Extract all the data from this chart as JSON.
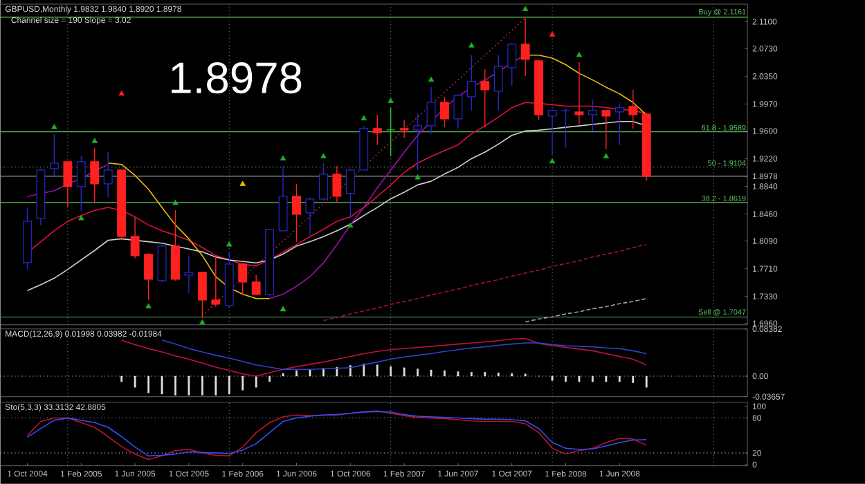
{
  "chart_data": [
    {
      "type": "candlestick",
      "title": "GBPUSD,Monthly  1.9832 1.9840 1.8920 1.8978",
      "subtitle": "Channel size = 190 Slope = 3.02",
      "annotations": [
        "1.8978",
        {
          "text": "61.8 - 1.9589",
          "y": 1.9589
        },
        {
          "text": "50 - 1.9104",
          "y": 1.9104
        },
        {
          "text": "38.2 - 1.8619",
          "y": 1.8619
        }
      ],
      "categories": [
        null,
        null,
        null,
        null,
        null,
        null,
        null,
        null,
        null,
        null,
        null,
        null,
        null,
        null,
        null,
        null,
        null,
        null,
        null,
        null,
        null,
        null,
        null,
        null,
        null,
        null,
        null,
        null,
        null,
        null,
        null,
        null,
        null,
        null,
        null,
        null,
        null,
        null,
        null,
        null,
        null,
        null,
        null,
        null,
        null,
        null,
        null,
        null,
        null,
        null,
        null,
        null,
        null,
        null
      ],
      "ohlc": [
        [
          1.7793,
          1.8552,
          1.7698,
          1.8362
        ],
        [
          1.84,
          1.9083,
          1.8305,
          1.9064
        ],
        [
          1.9083,
          1.9557,
          1.8988,
          1.9159
        ],
        [
          1.9178,
          1.9178,
          1.8552,
          1.8836
        ],
        [
          1.8836,
          1.9254,
          1.8495,
          1.9178
        ],
        [
          1.9178,
          1.9368,
          1.8609,
          1.8874
        ],
        [
          1.8874,
          1.9311,
          1.8685,
          1.9064
        ],
        [
          1.9064,
          1.9064,
          1.8115,
          1.8153
        ],
        [
          1.8153,
          1.8419,
          1.785,
          1.7888
        ],
        [
          1.7907,
          1.7926,
          1.728,
          1.7565
        ],
        [
          1.7546,
          1.8039,
          1.7527,
          1.802
        ],
        [
          1.802,
          1.8514,
          1.7546,
          1.7565
        ],
        [
          1.7622,
          1.7888,
          1.7375,
          1.766
        ],
        [
          1.766,
          1.766,
          1.7034,
          1.728
        ],
        [
          1.728,
          1.7888,
          1.7186,
          1.7223
        ],
        [
          1.7205,
          1.7945,
          1.7186,
          1.7774
        ],
        [
          1.7774,
          1.7793,
          1.7356,
          1.7527
        ],
        [
          1.7527,
          1.7622,
          1.7356,
          1.7356
        ],
        [
          1.7356,
          1.8248,
          1.7337,
          1.8248
        ],
        [
          1.8229,
          1.9121,
          1.8229,
          1.8704
        ],
        [
          1.8704,
          1.8874,
          1.8077,
          1.8457
        ],
        [
          1.8476,
          1.8685,
          1.8172,
          1.8666
        ],
        [
          1.8666,
          1.9159,
          1.8647,
          1.9007
        ],
        [
          1.9007,
          1.9121,
          1.8609,
          1.8704
        ],
        [
          1.8742,
          1.9083,
          1.84,
          1.9064
        ],
        [
          1.9064,
          1.9671,
          1.9064,
          1.9633
        ],
        [
          1.9633,
          1.9823,
          1.9406,
          1.9576
        ],
        [
          1.9614,
          1.9918,
          1.9254,
          1.9614
        ],
        [
          1.9633,
          1.9747,
          1.95,
          1.9614
        ],
        [
          1.9614,
          1.9842,
          1.9064,
          1.9671
        ],
        [
          1.9671,
          2.0203,
          1.9557,
          1.9994
        ],
        [
          1.9994,
          2.007,
          1.9652,
          1.9766
        ],
        [
          1.9766,
          2.0108,
          1.9633,
          2.0089
        ],
        [
          2.007,
          2.0639,
          1.988,
          2.0279
        ],
        [
          2.0279,
          2.0449,
          1.9652,
          2.0165
        ],
        [
          2.0146,
          2.0639,
          1.988,
          2.0487
        ],
        [
          2.0468,
          2.081,
          2.0222,
          2.0791
        ],
        [
          2.0791,
          2.1151,
          2.0354,
          2.0582
        ],
        [
          2.0563,
          2.0582,
          1.9747,
          1.9823
        ],
        [
          1.9804,
          1.9899,
          1.9273,
          1.988
        ],
        [
          1.988,
          1.9918,
          1.9368,
          1.988
        ],
        [
          1.9861,
          2.0544,
          1.969,
          1.9823
        ],
        [
          1.9823,
          2.0032,
          1.9595,
          1.988
        ],
        [
          1.988,
          1.988,
          1.9349,
          1.9804
        ],
        [
          1.9861,
          1.9975,
          1.9406,
          1.9918
        ],
        [
          1.9937,
          2.0165,
          1.9633,
          1.9823
        ],
        [
          1.9832,
          1.984,
          1.892,
          1.8978
        ],
        null,
        null,
        null,
        null,
        null,
        null,
        null
      ],
      "colors": [
        "#2828c8",
        "#2828c8",
        "#2828c8",
        "#ff2020",
        "#2828c8",
        "#ff2020",
        "#2828c8",
        "#ff2020",
        "#ff2020",
        "#ff2020",
        "#2828c8",
        "#ff2020",
        "#2828c8",
        "#ff2020",
        "#ff2020",
        "#2828c8",
        "#ff2020",
        "#ff2020",
        "#2828c8",
        "#2828c8",
        "#ff2020",
        "#2828c8",
        "#2828c8",
        "#ff2020",
        "#2828c8",
        "#2828c8",
        "#ff2020",
        "#30c030",
        "#ff2020",
        "#2828c8",
        "#2828c8",
        "#ff2020",
        "#2828c8",
        "#2828c8",
        "#ff2020",
        "#2828c8",
        "#2828c8",
        "#ff2020",
        "#ff2020",
        "#2828c8",
        "#2828c8",
        "#ff2020",
        "#2828c8",
        "#ff2020",
        "#2828c8",
        "#ff2020",
        "#ff2020",
        null,
        null,
        null,
        null,
        null,
        null,
        null
      ],
      "series": [
        {
          "type": "line",
          "color": "#e01040",
          "values": [
            1.793,
            1.808,
            1.823,
            1.836,
            1.844,
            1.851,
            1.855,
            1.851,
            1.842,
            1.831,
            1.823,
            1.817,
            1.81,
            1.8,
            1.789,
            1.783,
            1.777,
            1.775,
            1.783,
            1.794,
            1.804,
            1.815,
            1.825,
            1.836,
            1.842,
            1.855,
            1.87,
            1.886,
            1.903,
            1.916,
            1.925,
            1.933,
            1.941,
            1.956,
            1.967,
            1.979,
            1.992,
            1.999,
            1.998,
            1.996,
            1.994,
            1.994,
            1.994,
            1.992,
            1.99,
            1.988,
            1.984,
            null,
            null,
            null,
            null,
            null,
            null,
            null
          ]
        },
        {
          "type": "line",
          "color": "#d0d0d0",
          "values": [
            1.741,
            1.749,
            1.758,
            1.77,
            1.783,
            1.796,
            1.81,
            1.812,
            1.81,
            1.808,
            1.806,
            1.802,
            1.798,
            1.794,
            1.787,
            1.783,
            1.781,
            1.779,
            1.783,
            1.791,
            1.802,
            1.808,
            1.815,
            1.823,
            1.832,
            1.844,
            1.855,
            1.867,
            1.876,
            1.886,
            1.891,
            1.901,
            1.91,
            1.922,
            1.931,
            1.942,
            1.954,
            1.96,
            1.961,
            1.963,
            1.965,
            1.967,
            1.969,
            1.971,
            1.973,
            1.973,
            1.967,
            null,
            null,
            null,
            null,
            null,
            null,
            null
          ]
        },
        {
          "type": "line",
          "color": "#f0c000",
          "values": [
            null,
            null,
            null,
            null,
            null,
            null,
            1.916,
            1.914,
            1.899,
            1.88,
            1.855,
            1.831,
            1.812,
            1.789,
            1.76,
            1.745,
            1.736,
            1.73,
            1.73,
            null,
            null,
            null,
            null,
            null,
            null,
            null,
            null,
            null,
            null,
            null,
            null,
            null,
            null,
            null,
            null,
            null,
            null,
            2.064,
            2.064,
            2.06,
            2.051,
            2.039,
            2.03,
            2.02,
            2.011,
            1.999,
            1.982,
            null,
            null,
            null,
            null,
            null,
            null,
            null
          ]
        },
        {
          "type": "line",
          "color": "#a010b0",
          "values": [
            1.87,
            1.874,
            1.878,
            1.887,
            1.895,
            1.905,
            1.914,
            null,
            null,
            null,
            null,
            null,
            null,
            null,
            null,
            null,
            null,
            null,
            1.73,
            1.736,
            1.747,
            1.76,
            1.779,
            1.804,
            1.831,
            1.855,
            1.882,
            1.906,
            1.931,
            1.954,
            1.973,
            1.992,
            2.007,
            2.02,
            2.03,
            2.041,
            2.054,
            2.064,
            null,
            null,
            null,
            null,
            null,
            null,
            null,
            null,
            null,
            null,
            null,
            null,
            null,
            null,
            null,
            null
          ]
        },
        {
          "type": "line",
          "color": "#c03050",
          "line_style": "dotted",
          "values": [
            null,
            null,
            null,
            null,
            null,
            null,
            null,
            null,
            null,
            null,
            null,
            null,
            null,
            1.707,
            1.724,
            1.741,
            1.758,
            1.775,
            1.792,
            1.809,
            1.826,
            1.843,
            1.86,
            1.877,
            1.894,
            1.911,
            1.928,
            1.945,
            1.962,
            1.979,
            1.996,
            2.013,
            2.03,
            2.047,
            2.064,
            2.081,
            2.098,
            2.115,
            null,
            null,
            null,
            null,
            null,
            null,
            null,
            null,
            null,
            null,
            null,
            null,
            null,
            null,
            null,
            null
          ]
        },
        {
          "type": "line",
          "color": "#a01040",
          "line_style": "dashed",
          "values": [
            null,
            null,
            null,
            null,
            null,
            null,
            null,
            null,
            null,
            null,
            null,
            null,
            null,
            null,
            null,
            null,
            null,
            null,
            null,
            null,
            null,
            null,
            1.7,
            1.704,
            1.709,
            1.713,
            1.717,
            1.722,
            1.726,
            1.73,
            1.735,
            1.739,
            1.743,
            1.748,
            1.752,
            1.756,
            1.761,
            1.765,
            1.769,
            1.774,
            1.778,
            1.782,
            1.787,
            1.791,
            1.795,
            1.8,
            1.804,
            null,
            null,
            null,
            null,
            null,
            null,
            null
          ]
        },
        {
          "type": "line",
          "color": "#a0a0a0",
          "line_style": "dashed",
          "values": [
            null,
            null,
            null,
            null,
            null,
            null,
            null,
            null,
            null,
            null,
            null,
            null,
            null,
            null,
            null,
            null,
            null,
            null,
            null,
            null,
            null,
            null,
            null,
            null,
            null,
            null,
            null,
            null,
            null,
            null,
            null,
            null,
            null,
            null,
            null,
            null,
            null,
            1.698,
            1.702,
            1.705,
            1.709,
            1.712,
            1.716,
            1.719,
            1.723,
            1.726,
            1.73,
            null,
            null,
            null,
            null,
            null,
            null,
            null
          ]
        },
        {
          "type": "scatter",
          "marker": "triangle",
          "color": "#20b020",
          "values": [
            null,
            null,
            1.965,
            null,
            null,
            1.946,
            null,
            null,
            null,
            null,
            null,
            1.861,
            null,
            null,
            null,
            1.804,
            null,
            null,
            null,
            1.922,
            null,
            null,
            1.925,
            null,
            null,
            1.977,
            null,
            2.001,
            null,
            null,
            2.03,
            null,
            null,
            2.077,
            null,
            null,
            null,
            2.127,
            null,
            null,
            null,
            2.064,
            null,
            null,
            null,
            null,
            null,
            null,
            null,
            null,
            null,
            null,
            null,
            null
          ]
        },
        {
          "type": "scatter",
          "marker": "triangle",
          "color": "#20b020",
          "values": [
            null,
            null,
            null,
            null,
            1.84,
            null,
            null,
            null,
            null,
            1.719,
            null,
            null,
            null,
            1.697,
            null,
            null,
            null,
            null,
            null,
            null,
            null,
            null,
            null,
            null,
            1.83,
            null,
            null,
            null,
            null,
            1.896,
            null,
            null,
            null,
            null,
            null,
            null,
            null,
            null,
            null,
            1.918,
            null,
            null,
            null,
            1.925,
            null,
            null,
            null,
            null,
            null,
            null,
            null,
            null,
            null,
            null
          ]
        },
        {
          "type": "scatter",
          "marker": "triangle",
          "color": "#ff2020",
          "values": [
            null,
            null,
            null,
            null,
            null,
            null,
            null,
            2.011,
            null,
            null,
            null,
            null,
            null,
            null,
            null,
            null,
            null,
            null,
            null,
            null,
            null,
            null,
            null,
            null,
            null,
            null,
            null,
            null,
            null,
            null,
            null,
            null,
            null,
            null,
            null,
            null,
            null,
            null,
            null,
            2.092,
            null,
            null,
            null,
            null,
            null,
            null,
            null,
            null,
            null,
            null,
            null,
            null,
            null,
            null
          ]
        },
        {
          "type": "scatter",
          "marker": "triangle",
          "color": "#e0c000",
          "values": [
            null,
            null,
            null,
            null,
            null,
            null,
            null,
            null,
            null,
            null,
            null,
            null,
            null,
            null,
            null,
            null,
            1.887,
            null,
            null,
            null,
            null,
            null,
            null,
            null,
            null,
            null,
            null,
            null,
            null,
            null,
            null,
            null,
            null,
            null,
            null,
            null,
            null,
            null,
            null,
            null,
            null,
            null,
            null,
            null,
            null,
            null,
            null,
            null,
            null,
            null,
            null,
            null,
            null,
            null
          ]
        },
        {
          "type": "scatter",
          "marker": "triangle",
          "color": "#20c020",
          "values": [
            null,
            null,
            null,
            null,
            null,
            null,
            null,
            null,
            null,
            null,
            null,
            null,
            null,
            null,
            null,
            null,
            null,
            null,
            null,
            1.715,
            null,
            null,
            null,
            null,
            null,
            null,
            null,
            null,
            null,
            null,
            null,
            null,
            null,
            null,
            null,
            null,
            null,
            null,
            null,
            null,
            null,
            null,
            null,
            null,
            null,
            null,
            null,
            null,
            null,
            null,
            null,
            null,
            null,
            null
          ]
        }
      ],
      "ref_lines": [
        {
          "axis": "y",
          "value": 2.1161,
          "label": "Buy @ 2.1161",
          "color": "#60c060"
        },
        {
          "axis": "y",
          "value": 1.9589,
          "color": "#60c060"
        },
        {
          "axis": "y",
          "value": 1.9104,
          "color": "#60c060",
          "line_style": "dotted"
        },
        {
          "axis": "y",
          "value": 1.8978,
          "color": "#909090"
        },
        {
          "axis": "y",
          "value": 1.8619,
          "color": "#60c060"
        },
        {
          "axis": "y",
          "value": 1.7047,
          "label": "Sell @ 1.7047",
          "color": "#60c060"
        }
      ],
      "ylim": [
        1.694,
        2.134
      ],
      "grid": "x",
      "yticks": [
        {
          "value": 2.11,
          "label": "2.1100"
        },
        {
          "value": 2.073,
          "label": "2.0730"
        },
        {
          "value": 2.035,
          "label": "2.0350"
        },
        {
          "value": 1.997,
          "label": "1.9970"
        },
        {
          "value": 1.96,
          "label": "1.9600"
        },
        {
          "value": 1.922,
          "label": "1.9220"
        },
        {
          "value": 1.8978,
          "label": "1.8978"
        },
        {
          "value": 1.884,
          "label": "1.8840"
        },
        {
          "value": 1.846,
          "label": "1.8460"
        },
        {
          "value": 1.809,
          "label": "1.8090"
        },
        {
          "value": 1.771,
          "label": "1.7710"
        },
        {
          "value": 1.733,
          "label": "1.7330"
        },
        {
          "value": 1.696,
          "label": "1.6960"
        }
      ],
      "tick_labels": "y"
    },
    {
      "type": "bar",
      "title": "MACD(12,26,9) 0.01998 0.03982 -0.01984",
      "categories": [
        null,
        null,
        null,
        null,
        null,
        null,
        null,
        null,
        null,
        null,
        null,
        null,
        null,
        null,
        null,
        null,
        null,
        null,
        null,
        null,
        null,
        null,
        null,
        null,
        null,
        null,
        null,
        null,
        null,
        null,
        null,
        null,
        null,
        null,
        null,
        null,
        null,
        null,
        null,
        null,
        null,
        null,
        null,
        null,
        null,
        null,
        null,
        null,
        null,
        null,
        null,
        null,
        null,
        null
      ],
      "series": [
        {
          "type": "bar",
          "color": "#e0e0e0",
          "values": [
            null,
            null,
            null,
            null,
            null,
            null,
            null,
            -0.01,
            -0.02,
            -0.03,
            -0.032,
            -0.034,
            -0.034,
            -0.034,
            -0.034,
            -0.032,
            -0.025,
            -0.02,
            -0.01,
            0.005,
            0.01,
            0.012,
            0.014,
            0.016,
            0.019,
            0.022,
            0.02,
            0.017,
            0.015,
            0.013,
            0.011,
            0.01,
            0.008,
            0.007,
            0.007,
            0.006,
            0.005,
            0.004,
            0.0,
            -0.008,
            -0.01,
            -0.01,
            -0.01,
            -0.01,
            -0.01,
            -0.012,
            -0.02,
            null,
            null,
            null,
            null,
            null,
            null,
            null
          ]
        },
        {
          "type": "line",
          "color": "#c01040",
          "values": [
            null,
            null,
            null,
            null,
            null,
            null,
            null,
            0.064,
            0.056,
            0.049,
            0.043,
            0.036,
            0.03,
            0.023,
            0.016,
            0.01,
            0.004,
            0.0,
            0.006,
            0.012,
            0.017,
            0.021,
            0.025,
            0.03,
            0.035,
            0.04,
            0.044,
            0.047,
            0.049,
            0.051,
            0.053,
            0.055,
            0.057,
            0.059,
            0.061,
            0.063,
            0.066,
            0.067,
            0.058,
            0.054,
            0.051,
            0.048,
            0.045,
            0.04,
            0.035,
            0.03,
            0.02,
            null,
            null,
            null,
            null,
            null,
            null,
            null
          ]
        },
        {
          "type": "line",
          "color": "#3040d0",
          "values": [
            null,
            null,
            null,
            null,
            null,
            null,
            null,
            null,
            null,
            null,
            0.064,
            0.057,
            0.049,
            0.043,
            0.037,
            0.032,
            0.026,
            0.02,
            0.016,
            0.012,
            0.012,
            0.012,
            0.013,
            0.014,
            0.015,
            0.02,
            0.025,
            0.03,
            0.034,
            0.037,
            0.04,
            0.044,
            0.047,
            0.05,
            0.052,
            0.055,
            0.057,
            0.059,
            0.059,
            0.056,
            0.054,
            0.053,
            0.052,
            0.05,
            0.049,
            0.045,
            0.04,
            null,
            null,
            null,
            null,
            null,
            null,
            null
          ]
        }
      ],
      "ref_lines": [
        {
          "axis": "y",
          "value": 0,
          "color": "#c0c0c0",
          "line_style": "dotted"
        }
      ],
      "ylim": [
        -0.03657,
        0.08382
      ],
      "grid": "x",
      "yticks": [
        {
          "value": 0.08382,
          "label": "0.08382"
        },
        {
          "value": 0,
          "label": "0.00"
        },
        {
          "value": -0.03657,
          "label": "-0.03657"
        }
      ],
      "tick_labels": "y"
    },
    {
      "type": "line",
      "title": "Sto(5,3,3) 33.3132 42.8805",
      "categories": [
        "1 Oct 2004",
        null,
        null,
        null,
        "1 Feb 2005",
        null,
        null,
        null,
        "1 Jun 2005",
        null,
        null,
        null,
        "1 Oct 2005",
        null,
        null,
        null,
        "1 Feb 2006",
        null,
        null,
        null,
        "1 Jun 2006",
        null,
        null,
        null,
        "1 Oct 2006",
        null,
        null,
        null,
        "1 Feb 2007",
        null,
        null,
        null,
        "1 Jun 2007",
        null,
        null,
        null,
        "1 Oct 2007",
        null,
        null,
        null,
        "1 Feb 2008",
        null,
        null,
        null,
        "1 Jun 2008",
        null,
        null,
        null,
        null,
        null,
        null,
        null,
        null,
        null
      ],
      "series": [
        {
          "color": "#c01030",
          "values": [
            50,
            74,
            80,
            80,
            72,
            64,
            48,
            31,
            18,
            9,
            15,
            24,
            26,
            20,
            16,
            15,
            30,
            55,
            72,
            82,
            85,
            84,
            85,
            85,
            88,
            91,
            92,
            88,
            84,
            81,
            80,
            79,
            77,
            75,
            74,
            74,
            74,
            70,
            55,
            28,
            18,
            24,
            28,
            38,
            45,
            44,
            33,
            null,
            null,
            null,
            null,
            null,
            null,
            null
          ]
        },
        {
          "color": "#3050ff",
          "values": [
            47,
            62,
            76,
            80,
            76,
            72,
            64,
            48,
            30,
            15,
            16,
            18,
            22,
            21,
            20,
            19,
            25,
            36,
            55,
            74,
            80,
            83,
            85,
            86,
            88,
            90,
            91,
            90,
            86,
            83,
            82,
            81,
            80,
            79,
            78,
            78,
            77,
            75,
            62,
            38,
            28,
            26,
            27,
            32,
            38,
            42,
            43,
            null,
            null,
            null,
            null,
            null,
            null,
            null
          ]
        }
      ],
      "ref_lines": [
        {
          "axis": "y",
          "value": 80,
          "color": "#c0c0c0",
          "line_style": "dotted"
        },
        {
          "axis": "y",
          "value": 20,
          "color": "#c0c0c0",
          "line_style": "dotted"
        }
      ],
      "ylim": [
        -2,
        107
      ],
      "grid": "x",
      "yticks": [
        100,
        80,
        20,
        0
      ]
    }
  ]
}
